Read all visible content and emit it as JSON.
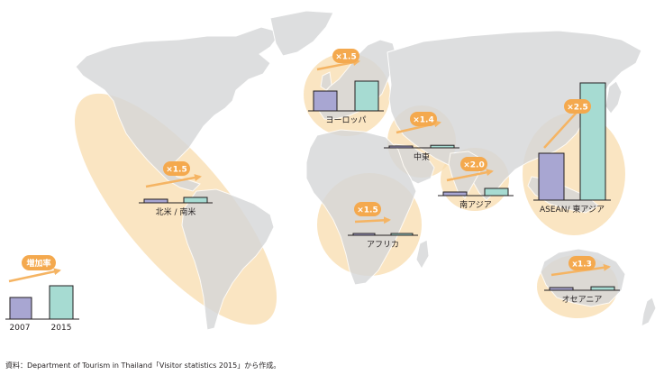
{
  "colors": {
    "land": "#d6d7d8",
    "ocean": "#ffffff",
    "halo": "#f8dcae",
    "arrow": "#f5b463",
    "badge": "#f4a94e",
    "bar_2007": "#a8a6d2",
    "bar_2015": "#a6dbd2",
    "bar_stroke": "#231f20"
  },
  "legend": {
    "badge_label": "増加率",
    "year_a": "2007",
    "year_b": "2015"
  },
  "regions": [
    {
      "id": "europe",
      "name": "ヨーロッパ",
      "rate": "×1.5",
      "v2007": 1.0,
      "v2015": 1.5
    },
    {
      "id": "middle-east",
      "name": "中東",
      "rate": "×1.4",
      "v2007": 1.0,
      "v2015": 1.4
    },
    {
      "id": "south-asia",
      "name": "南アジア",
      "rate": "×2.0",
      "v2007": 1.0,
      "v2015": 2.0
    },
    {
      "id": "asean-east-asia",
      "name": "ASEAN/ 東アジア",
      "rate": "×2.5",
      "v2007": 1.0,
      "v2015": 2.5
    },
    {
      "id": "north-south-america",
      "name": "北米 / 南米",
      "rate": "×1.5",
      "v2007": 1.0,
      "v2015": 1.5
    },
    {
      "id": "africa",
      "name": "アフリカ",
      "rate": "×1.5",
      "v2007": 1.0,
      "v2015": 1.5
    },
    {
      "id": "oceania",
      "name": "オセアニア",
      "rate": "x1.3",
      "v2007": 1.0,
      "v2015": 1.3
    }
  ],
  "source": "資料：Department of Tourism in Thailand「Visitor statistics 2015」から作成。"
}
